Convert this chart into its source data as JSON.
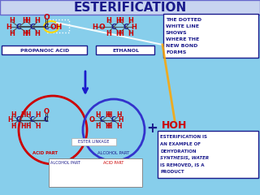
{
  "title": "ESTERIFICATION",
  "title_color": "#1a1a8c",
  "bg_color": "#87CEEB",
  "bg_gradient_top": "#b0c4de",
  "bg_gradient_bottom": "#6ab0e0",
  "header_bg": "#c8d4f0",
  "header_border": "#6666cc",
  "note_box_text": [
    "THE DOTTED",
    "WHITE LINE",
    "SHOWS",
    "WHERE THE",
    "NEW BOND",
    "FORMS"
  ],
  "bottom_box_text": [
    "ESTERIFICATION IS",
    "AN EXAMPLE OF",
    "DEHYDRATION",
    "SYNTHESIS, WATER",
    "IS REMOVED, IS A",
    "PRODUCT"
  ],
  "propanoic_label": "PROPANOIC ACID",
  "ethanol_label": "ETHANOL",
  "acid_part_label": "ACID PART",
  "alcohol_part_label": "ALCOHOL PART",
  "ester_linkage_label": "ESTER LINKAGE",
  "hoh_label": "HOH",
  "plus_label": "+",
  "alcohol_part_bottom": "ALCOHOL PART",
  "acid_part_bottom": "ACID PART",
  "red": "#cc0000",
  "dark_red": "#8B0000",
  "dark_blue": "#1a1a8c",
  "teal": "#006666",
  "white": "#ffffff",
  "yellow": "#FFD700",
  "orange_yellow": "#FFA500"
}
